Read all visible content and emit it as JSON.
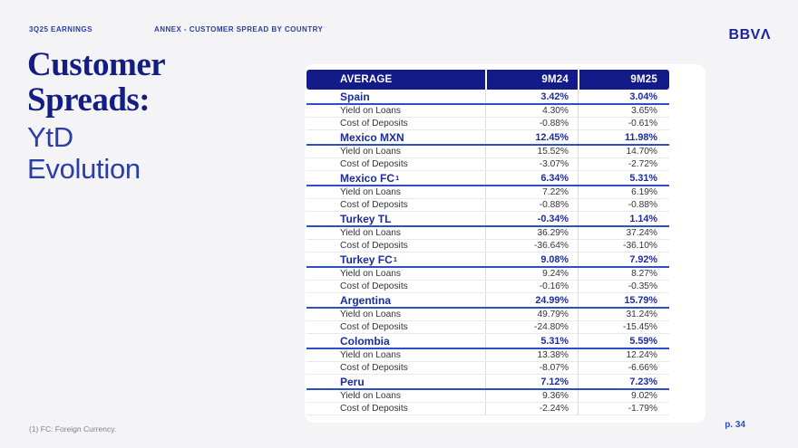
{
  "topbar": {
    "left_label": "3Q25 EARNINGS",
    "center_label": "ANNEX - CUSTOMER SPREAD BY COUNTRY",
    "logo_prefix": "BBV",
    "logo_a_glyph": "Λ"
  },
  "title": {
    "serif_lines": [
      "Customer",
      "Spreads:"
    ],
    "sans_lines": [
      "YtD",
      "Evolution"
    ]
  },
  "table": {
    "header": {
      "col1": "AVERAGE",
      "col2": "9M24",
      "col3": "9M25"
    },
    "row_labels": {
      "yield": "Yield on Loans",
      "cost": "Cost of Deposits"
    },
    "countries": [
      {
        "name": "Spain",
        "sup": "",
        "avg_9m24": "3.42%",
        "avg_9m25": "3.04%",
        "yield_9m24": "4.30%",
        "yield_9m25": "3.65%",
        "cost_9m24": "-0.88%",
        "cost_9m25": "-0.61%"
      },
      {
        "name": "Mexico MXN",
        "sup": "",
        "avg_9m24": "12.45%",
        "avg_9m25": "11.98%",
        "yield_9m24": "15.52%",
        "yield_9m25": "14.70%",
        "cost_9m24": "-3.07%",
        "cost_9m25": "-2.72%"
      },
      {
        "name": "Mexico FC",
        "sup": "1",
        "avg_9m24": "6.34%",
        "avg_9m25": "5.31%",
        "yield_9m24": "7.22%",
        "yield_9m25": "6.19%",
        "cost_9m24": "-0.88%",
        "cost_9m25": "-0.88%"
      },
      {
        "name": "Turkey TL",
        "sup": "",
        "avg_9m24": "-0.34%",
        "avg_9m25": "1.14%",
        "yield_9m24": "36.29%",
        "yield_9m25": "37.24%",
        "cost_9m24": "-36.64%",
        "cost_9m25": "-36.10%"
      },
      {
        "name": "Turkey FC",
        "sup": "1",
        "avg_9m24": "9.08%",
        "avg_9m25": "7.92%",
        "yield_9m24": "9.24%",
        "yield_9m25": "8.27%",
        "cost_9m24": "-0.16%",
        "cost_9m25": "-0.35%"
      },
      {
        "name": "Argentina",
        "sup": "",
        "avg_9m24": "24.99%",
        "avg_9m25": "15.79%",
        "yield_9m24": "49.79%",
        "yield_9m25": "31.24%",
        "cost_9m24": "-24.80%",
        "cost_9m25": "-15.45%"
      },
      {
        "name": "Colombia",
        "sup": "",
        "avg_9m24": "5.31%",
        "avg_9m25": "5.59%",
        "yield_9m24": "13.38%",
        "yield_9m25": "12.24%",
        "cost_9m24": "-8.07%",
        "cost_9m25": "-6.66%"
      },
      {
        "name": "Peru",
        "sup": "",
        "avg_9m24": "7.12%",
        "avg_9m25": "7.23%",
        "yield_9m24": "9.36%",
        "yield_9m25": "9.02%",
        "cost_9m24": "-2.24%",
        "cost_9m25": "-1.79%"
      }
    ]
  },
  "footer": {
    "footnote": "(1) FC: Foreign Currency.",
    "page": "p. 34"
  },
  "colors": {
    "page-bg": "#f4f4f6",
    "card-bg": "#ffffff",
    "brand-blue": "#1a23a0",
    "header-bg": "#131b8b",
    "country-blue": "#1b2d9e",
    "title-navy": "#141e82",
    "subtitle-blue": "#2b3da8",
    "row-underline": "#2c4ec6",
    "body-text": "#33343a",
    "footnote-gray": "#7a8494",
    "divider": "#d9dce4",
    "subdivider": "#e7e9ee"
  }
}
